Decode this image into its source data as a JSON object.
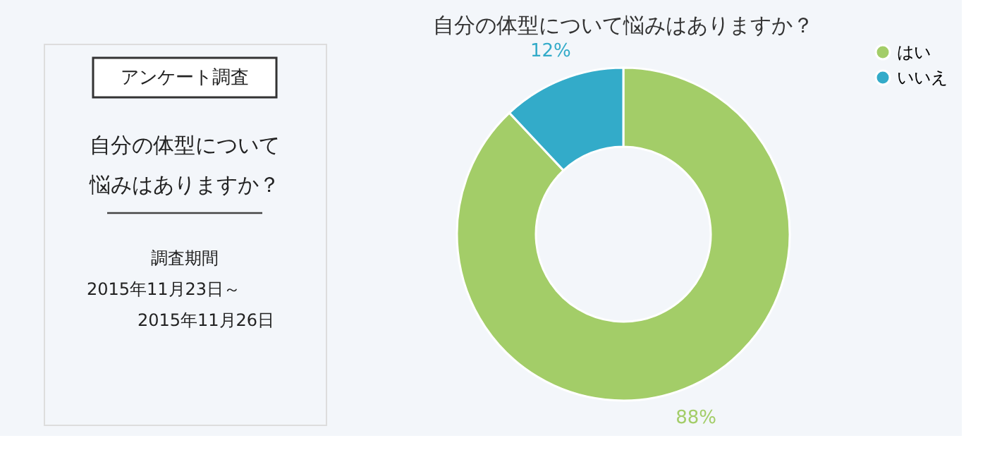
{
  "chart_data": [
    {
      "type": "other",
      "title": "アンケート調査",
      "annotations": [
        "自分の体型について",
        "悩みはありますか？",
        "調査期間",
        "2015年11月23日～",
        "2015年11月26日"
      ]
    },
    {
      "type": "donut",
      "title": "自分の体型について悩みはありますか？",
      "categories": [
        "はい",
        "いいえ"
      ],
      "values": [
        88,
        12
      ],
      "colors": [
        "#a3cd68",
        "#33abc9"
      ],
      "value_labels": [
        "88%",
        "12%"
      ],
      "legend": "right"
    }
  ]
}
